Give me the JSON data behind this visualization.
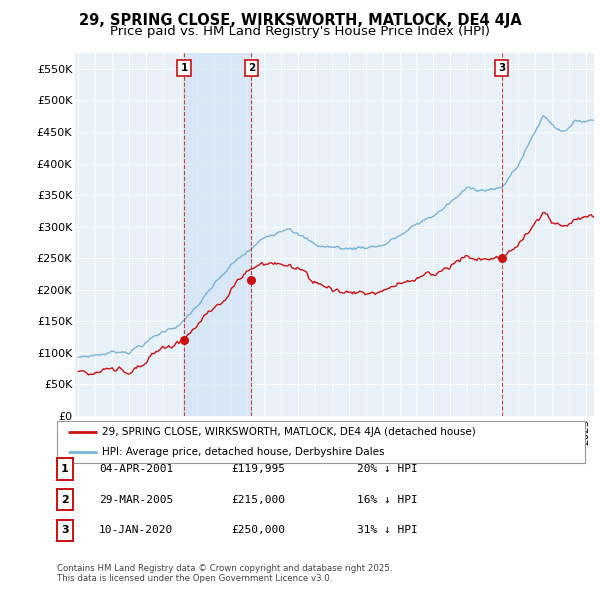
{
  "title": "29, SPRING CLOSE, WIRKSWORTH, MATLOCK, DE4 4JA",
  "subtitle": "Price paid vs. HM Land Registry's House Price Index (HPI)",
  "title_fontsize": 10.5,
  "subtitle_fontsize": 9.5,
  "ylim": [
    0,
    575000
  ],
  "yticks": [
    0,
    50000,
    100000,
    150000,
    200000,
    250000,
    300000,
    350000,
    400000,
    450000,
    500000,
    550000
  ],
  "ytick_labels": [
    "£0",
    "£50K",
    "£100K",
    "£150K",
    "£200K",
    "£250K",
    "£300K",
    "£350K",
    "£400K",
    "£450K",
    "£500K",
    "£550K"
  ],
  "xlim_start": 1994.8,
  "xlim_end": 2025.5,
  "background_color": "#ffffff",
  "plot_bg_color": "#e8f0f8",
  "grid_color": "#ffffff",
  "hpi_color": "#7ab4d8",
  "price_color": "#cc1111",
  "sale_marker_color": "#cc1111",
  "sale_dashed_color": "#cc2222",
  "shade_color": "#d0e4f4",
  "legend_label_red": "29, SPRING CLOSE, WIRKSWORTH, MATLOCK, DE4 4JA (detached house)",
  "legend_label_blue": "HPI: Average price, detached house, Derbyshire Dales",
  "sales": [
    {
      "label": "1",
      "date_num": 2001.25,
      "price": 119995,
      "note": "04-APR-2001",
      "price_str": "£119,995",
      "pct": "20% ↓ HPI"
    },
    {
      "label": "2",
      "date_num": 2005.24,
      "price": 215000,
      "note": "29-MAR-2005",
      "price_str": "£215,000",
      "pct": "16% ↓ HPI"
    },
    {
      "label": "3",
      "date_num": 2020.03,
      "price": 250000,
      "note": "10-JAN-2020",
      "price_str": "£250,000",
      "pct": "31% ↓ HPI"
    }
  ],
  "footer": "Contains HM Land Registry data © Crown copyright and database right 2025.\nThis data is licensed under the Open Government Licence v3.0."
}
